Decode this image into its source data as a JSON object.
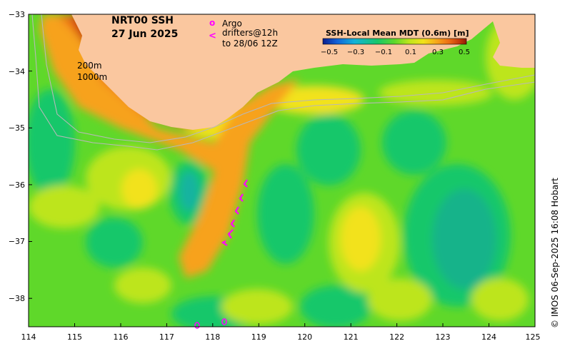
{
  "title": {
    "product": "NRT00 SSH",
    "date": "27 Jun 2025"
  },
  "legend": {
    "argo_symbol": "o",
    "argo_label": "Argo",
    "drifter_symbol": "<",
    "drifter_label_line1": "drifters@12h",
    "drifter_label_line2": "to 28/06 12Z"
  },
  "isobaths": {
    "label_200": "200m",
    "label_1000": "1000m"
  },
  "colorbar": {
    "title": "SSH-Local Mean MDT (0.6m) [m]",
    "ticks": [
      "−0.5",
      "−0.3",
      "−0.1",
      "0.1",
      "0.3",
      "0.5"
    ],
    "colors": [
      "#0b1f8f",
      "#1262d9",
      "#13b3d9",
      "#16c76a",
      "#5fd82a",
      "#bde51c",
      "#f2e21a",
      "#f7a21b",
      "#ec6d16",
      "#c43a0b",
      "#8f1b05"
    ]
  },
  "axes": {
    "x_ticks": [
      "114",
      "115",
      "116",
      "117",
      "118",
      "119",
      "120",
      "121",
      "122",
      "123",
      "124",
      "125"
    ],
    "y_ticks": [
      "−33",
      "−34",
      "−35",
      "−36",
      "−37",
      "−38"
    ],
    "lon_range": [
      114,
      125
    ],
    "lat_range": [
      -38.5,
      -33
    ]
  },
  "credit": "© IMOS 06-Sep-2025 16:08 Hobart",
  "colors": {
    "land": "#fac79f",
    "argo": "#ff00ff",
    "drifter": "#ff00ff"
  }
}
